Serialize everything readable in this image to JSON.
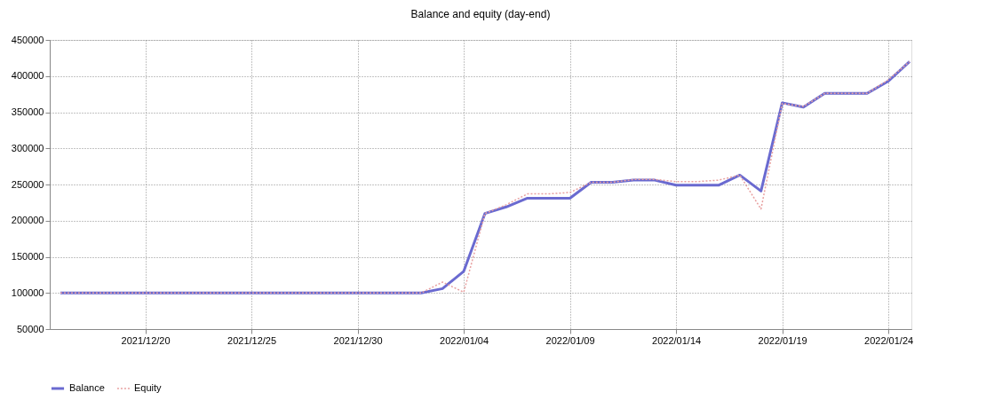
{
  "chart_data": {
    "type": "line",
    "title": "Balance and equity (day-end)",
    "x": [
      "2021-12-16",
      "2021-12-17",
      "2021-12-18",
      "2021-12-19",
      "2021-12-20",
      "2021-12-21",
      "2021-12-22",
      "2021-12-23",
      "2021-12-24",
      "2021-12-25",
      "2021-12-26",
      "2021-12-27",
      "2021-12-28",
      "2021-12-29",
      "2021-12-30",
      "2021-12-31",
      "2022-01-01",
      "2022-01-02",
      "2022-01-03",
      "2022-01-04",
      "2022-01-05",
      "2022-01-06",
      "2022-01-07",
      "2022-01-08",
      "2022-01-09",
      "2022-01-10",
      "2022-01-11",
      "2022-01-12",
      "2022-01-13",
      "2022-01-14",
      "2022-01-15",
      "2022-01-16",
      "2022-01-17",
      "2022-01-18",
      "2022-01-19",
      "2022-01-20",
      "2022-01-21",
      "2022-01-22",
      "2022-01-23",
      "2022-01-24",
      "2022-01-25"
    ],
    "series": [
      {
        "name": "Balance",
        "color": "#6a6ad0",
        "line_style": "solid",
        "values": [
          100000,
          100000,
          100000,
          100000,
          100000,
          100000,
          100000,
          100000,
          100000,
          100000,
          100000,
          100000,
          100000,
          100000,
          100000,
          100000,
          100000,
          100000,
          106000,
          130000,
          210000,
          219000,
          231000,
          231000,
          231000,
          253000,
          253000,
          256000,
          256000,
          249000,
          249000,
          249000,
          263000,
          241000,
          363000,
          357000,
          376000,
          376000,
          376000,
          393000,
          420000
        ]
      },
      {
        "name": "Equity",
        "color": "#e8a0a0",
        "line_style": "dotted",
        "values": [
          100000,
          100000,
          100000,
          100000,
          100000,
          100000,
          100000,
          100000,
          100000,
          100000,
          100000,
          100000,
          100000,
          100000,
          100000,
          100000,
          100000,
          100000,
          115000,
          101000,
          210000,
          222000,
          237000,
          237000,
          239000,
          253000,
          253000,
          257000,
          257000,
          254000,
          254000,
          256000,
          263000,
          216000,
          362000,
          358000,
          376000,
          376000,
          376000,
          395000,
          420000
        ]
      }
    ],
    "xlim": [
      "2021-12-15T12:00",
      "2022-01-25T02:00"
    ],
    "xticks": [
      {
        "value": "2021-12-20",
        "label": "2021/12/20"
      },
      {
        "value": "2021-12-25",
        "label": "2021/12/25"
      },
      {
        "value": "2021-12-30",
        "label": "2021/12/30"
      },
      {
        "value": "2022-01-04",
        "label": "2022/01/04"
      },
      {
        "value": "2022-01-09",
        "label": "2022/01/09"
      },
      {
        "value": "2022-01-14",
        "label": "2022/01/14"
      },
      {
        "value": "2022-01-19",
        "label": "2022/01/19"
      },
      {
        "value": "2022-01-24",
        "label": "2022/01/24"
      }
    ],
    "ylim": [
      50000,
      450000
    ],
    "yticks": [
      50000,
      100000,
      150000,
      200000,
      250000,
      300000,
      350000,
      400000,
      450000
    ],
    "grid": true,
    "legend": "bottom left",
    "marker": "none"
  }
}
